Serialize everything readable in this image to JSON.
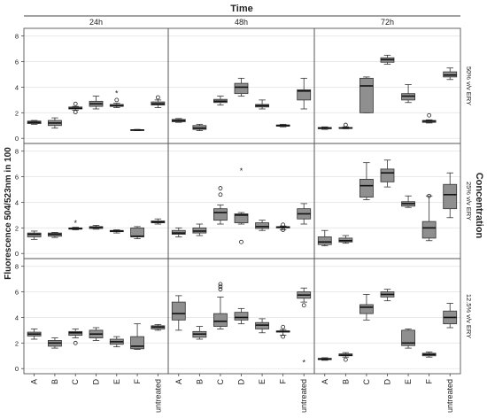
{
  "chart_data": {
    "type": "boxplot",
    "title": "Time",
    "ylabel": "Fluorescence 504/523nm in 100",
    "right_label": "Concentration",
    "columns": [
      "24h",
      "48h",
      "72h"
    ],
    "rows": [
      "50% v/v ERY",
      "25% v/v ERY",
      "12.5% v/v ERY"
    ],
    "categories": [
      "A",
      "B",
      "C",
      "D",
      "E",
      "F",
      "untreated"
    ],
    "yticks": [
      0,
      2,
      4,
      6,
      8
    ],
    "ylim": [
      -0.4,
      8.6
    ],
    "panels": [
      [
        [
          {
            "lo": 1.1,
            "q1": 1.15,
            "med": 1.25,
            "q3": 1.35,
            "hi": 1.4,
            "out": []
          },
          {
            "lo": 0.8,
            "q1": 1.0,
            "med": 1.2,
            "q3": 1.4,
            "hi": 1.6,
            "out": []
          },
          {
            "lo": 2.2,
            "q1": 2.3,
            "med": 2.35,
            "q3": 2.45,
            "hi": 2.5,
            "out": [
              {
                "v": 2.7,
                "s": "o"
              },
              {
                "v": 2.05,
                "s": "o"
              }
            ]
          },
          {
            "lo": 2.3,
            "q1": 2.5,
            "med": 2.7,
            "q3": 2.9,
            "hi": 3.3,
            "out": []
          },
          {
            "lo": 2.4,
            "q1": 2.5,
            "med": 2.55,
            "q3": 2.65,
            "hi": 2.75,
            "out": [
              {
                "v": 3.0,
                "s": "o"
              },
              {
                "v": 3.55,
                "s": "*"
              }
            ]
          },
          {
            "lo": 0.6,
            "q1": 0.62,
            "med": 0.65,
            "q3": 0.68,
            "hi": 0.7,
            "out": []
          },
          {
            "lo": 2.4,
            "q1": 2.6,
            "med": 2.7,
            "q3": 2.85,
            "hi": 3.0,
            "out": [
              {
                "v": 3.2,
                "s": "o"
              }
            ]
          }
        ],
        [
          {
            "lo": 1.25,
            "q1": 1.3,
            "med": 1.38,
            "q3": 1.48,
            "hi": 1.55,
            "out": []
          },
          {
            "lo": 0.6,
            "q1": 0.7,
            "med": 0.8,
            "q3": 1.0,
            "hi": 1.1,
            "out": []
          },
          {
            "lo": 2.6,
            "q1": 2.8,
            "med": 2.9,
            "q3": 3.05,
            "hi": 3.3,
            "out": []
          },
          {
            "lo": 3.3,
            "q1": 3.5,
            "med": 4.0,
            "q3": 4.3,
            "hi": 4.7,
            "out": []
          },
          {
            "lo": 2.3,
            "q1": 2.45,
            "med": 2.55,
            "q3": 2.65,
            "hi": 3.0,
            "out": []
          },
          {
            "lo": 0.9,
            "q1": 0.95,
            "med": 1.0,
            "q3": 1.05,
            "hi": 1.1,
            "out": []
          },
          {
            "lo": 2.3,
            "q1": 3.0,
            "med": 3.7,
            "q3": 3.8,
            "hi": 4.7,
            "out": []
          }
        ],
        [
          {
            "lo": 0.7,
            "q1": 0.75,
            "med": 0.8,
            "q3": 0.85,
            "hi": 0.9,
            "out": []
          },
          {
            "lo": 0.75,
            "q1": 0.78,
            "med": 0.8,
            "q3": 0.85,
            "hi": 0.9,
            "out": [
              {
                "v": 1.05,
                "s": "o"
              }
            ]
          },
          {
            "lo": 2.0,
            "q1": 2.0,
            "med": 4.1,
            "q3": 4.7,
            "hi": 4.8,
            "out": []
          },
          {
            "lo": 5.8,
            "q1": 5.95,
            "med": 6.15,
            "q3": 6.3,
            "hi": 6.5,
            "out": []
          },
          {
            "lo": 2.8,
            "q1": 3.0,
            "med": 3.3,
            "q3": 3.5,
            "hi": 4.2,
            "out": []
          },
          {
            "lo": 1.2,
            "q1": 1.25,
            "med": 1.35,
            "q3": 1.4,
            "hi": 1.45,
            "out": [
              {
                "v": 1.8,
                "s": "o"
              }
            ]
          },
          {
            "lo": 4.6,
            "q1": 4.8,
            "med": 4.95,
            "q3": 5.2,
            "hi": 5.5,
            "out": []
          }
        ]
      ],
      [
        [
          {
            "lo": 1.1,
            "q1": 1.3,
            "med": 1.5,
            "q3": 1.6,
            "hi": 1.75,
            "out": []
          },
          {
            "lo": 1.25,
            "q1": 1.35,
            "med": 1.5,
            "q3": 1.6,
            "hi": 1.65,
            "out": []
          },
          {
            "lo": 1.85,
            "q1": 1.9,
            "med": 1.95,
            "q3": 2.0,
            "hi": 2.05,
            "out": [
              {
                "v": 2.4,
                "s": "*"
              }
            ]
          },
          {
            "lo": 1.9,
            "q1": 1.95,
            "med": 2.05,
            "q3": 2.1,
            "hi": 2.2,
            "out": []
          },
          {
            "lo": 1.6,
            "q1": 1.7,
            "med": 1.75,
            "q3": 1.8,
            "hi": 1.85,
            "out": []
          },
          {
            "lo": 1.15,
            "q1": 1.3,
            "med": 1.35,
            "q3": 2.0,
            "hi": 2.1,
            "out": []
          },
          {
            "lo": 2.3,
            "q1": 2.4,
            "med": 2.45,
            "q3": 2.55,
            "hi": 2.7,
            "out": []
          }
        ],
        [
          {
            "lo": 1.3,
            "q1": 1.5,
            "med": 1.6,
            "q3": 1.8,
            "hi": 2.0,
            "out": []
          },
          {
            "lo": 1.4,
            "q1": 1.6,
            "med": 1.75,
            "q3": 2.0,
            "hi": 2.3,
            "out": []
          },
          {
            "lo": 2.3,
            "q1": 2.6,
            "med": 3.2,
            "q3": 3.5,
            "hi": 3.8,
            "out": [
              {
                "v": 4.6,
                "s": "o"
              },
              {
                "v": 5.1,
                "s": "o"
              }
            ]
          },
          {
            "lo": 2.3,
            "q1": 2.4,
            "med": 3.0,
            "q3": 3.1,
            "hi": 3.2,
            "out": [
              {
                "v": 6.5,
                "s": "*"
              },
              {
                "v": 0.9,
                "s": "o"
              }
            ]
          },
          {
            "lo": 1.8,
            "q1": 1.95,
            "med": 2.1,
            "q3": 2.4,
            "hi": 2.6,
            "out": []
          },
          {
            "lo": 1.85,
            "q1": 2.0,
            "med": 2.05,
            "q3": 2.1,
            "hi": 2.15,
            "out": [
              {
                "v": 2.25,
                "s": "o"
              },
              {
                "v": 1.85,
                "s": "o"
              }
            ]
          },
          {
            "lo": 2.3,
            "q1": 2.7,
            "med": 3.1,
            "q3": 3.5,
            "hi": 3.9,
            "out": []
          }
        ],
        [
          {
            "lo": 0.6,
            "q1": 0.7,
            "med": 0.9,
            "q3": 1.3,
            "hi": 1.8,
            "out": []
          },
          {
            "lo": 0.8,
            "q1": 0.9,
            "med": 1.0,
            "q3": 1.2,
            "hi": 1.4,
            "out": []
          },
          {
            "lo": 4.2,
            "q1": 4.4,
            "med": 5.3,
            "q3": 5.8,
            "hi": 7.1,
            "out": []
          },
          {
            "lo": 5.2,
            "q1": 5.6,
            "med": 6.3,
            "q3": 6.6,
            "hi": 7.3,
            "out": []
          },
          {
            "lo": 3.6,
            "q1": 3.7,
            "med": 3.9,
            "q3": 4.05,
            "hi": 4.5,
            "out": []
          },
          {
            "lo": 1.0,
            "q1": 1.2,
            "med": 2.0,
            "q3": 2.5,
            "hi": 4.5,
            "out": [
              {
                "v": 4.5,
                "s": "o"
              }
            ]
          },
          {
            "lo": 2.8,
            "q1": 3.5,
            "med": 4.6,
            "q3": 5.4,
            "hi": 6.3,
            "out": []
          }
        ]
      ],
      [
        [
          {
            "lo": 2.3,
            "q1": 2.55,
            "med": 2.7,
            "q3": 2.85,
            "hi": 3.1,
            "out": []
          },
          {
            "lo": 1.6,
            "q1": 1.75,
            "med": 2.0,
            "q3": 2.2,
            "hi": 2.4,
            "out": []
          },
          {
            "lo": 2.4,
            "q1": 2.6,
            "med": 2.8,
            "q3": 2.9,
            "hi": 3.1,
            "out": [
              {
                "v": 2.0,
                "s": "o"
              }
            ]
          },
          {
            "lo": 2.2,
            "q1": 2.4,
            "med": 2.7,
            "q3": 3.0,
            "hi": 3.2,
            "out": []
          },
          {
            "lo": 1.7,
            "q1": 1.9,
            "med": 2.1,
            "q3": 2.3,
            "hi": 2.5,
            "out": []
          },
          {
            "lo": 1.5,
            "q1": 1.55,
            "med": 1.75,
            "q3": 2.5,
            "hi": 3.5,
            "out": []
          },
          {
            "lo": 3.0,
            "q1": 3.1,
            "med": 3.25,
            "q3": 3.35,
            "hi": 3.45,
            "out": []
          }
        ],
        [
          {
            "lo": 3.0,
            "q1": 3.8,
            "med": 4.3,
            "q3": 5.2,
            "hi": 5.7,
            "out": []
          },
          {
            "lo": 2.3,
            "q1": 2.45,
            "med": 2.7,
            "q3": 2.9,
            "hi": 3.3,
            "out": []
          },
          {
            "lo": 3.1,
            "q1": 3.3,
            "med": 3.7,
            "q3": 4.3,
            "hi": 5.6,
            "out": [
              {
                "v": 6.2,
                "s": "o"
              },
              {
                "v": 6.4,
                "s": "o"
              },
              {
                "v": 6.6,
                "s": "o"
              }
            ]
          },
          {
            "lo": 3.5,
            "q1": 3.8,
            "med": 4.0,
            "q3": 4.4,
            "hi": 4.7,
            "out": []
          },
          {
            "lo": 2.8,
            "q1": 3.1,
            "med": 3.4,
            "q3": 3.6,
            "hi": 3.9,
            "out": []
          },
          {
            "lo": 2.6,
            "q1": 2.85,
            "med": 2.9,
            "q3": 2.95,
            "hi": 3.05,
            "out": [
              {
                "v": 3.25,
                "s": "o"
              },
              {
                "v": 2.5,
                "s": "o"
              }
            ]
          },
          {
            "lo": 5.2,
            "q1": 5.5,
            "med": 5.75,
            "q3": 6.0,
            "hi": 6.3,
            "out": [
              {
                "v": 4.95,
                "s": "o"
              },
              {
                "v": 0.5,
                "s": "*"
              }
            ]
          }
        ],
        [
          {
            "lo": 0.65,
            "q1": 0.7,
            "med": 0.75,
            "q3": 0.8,
            "hi": 0.85,
            "out": []
          },
          {
            "lo": 0.9,
            "q1": 1.0,
            "med": 1.05,
            "q3": 1.15,
            "hi": 1.25,
            "out": [
              {
                "v": 0.7,
                "s": "o"
              }
            ]
          },
          {
            "lo": 3.8,
            "q1": 4.3,
            "med": 4.8,
            "q3": 5.0,
            "hi": 5.8,
            "out": []
          },
          {
            "lo": 5.3,
            "q1": 5.6,
            "med": 5.8,
            "q3": 6.0,
            "hi": 6.2,
            "out": []
          },
          {
            "lo": 1.6,
            "q1": 1.8,
            "med": 2.0,
            "q3": 3.0,
            "hi": 3.1,
            "out": []
          },
          {
            "lo": 0.9,
            "q1": 1.0,
            "med": 1.1,
            "q3": 1.2,
            "hi": 1.3,
            "out": []
          },
          {
            "lo": 3.2,
            "q1": 3.5,
            "med": 4.0,
            "q3": 4.5,
            "hi": 5.1,
            "out": []
          }
        ]
      ]
    ]
  }
}
